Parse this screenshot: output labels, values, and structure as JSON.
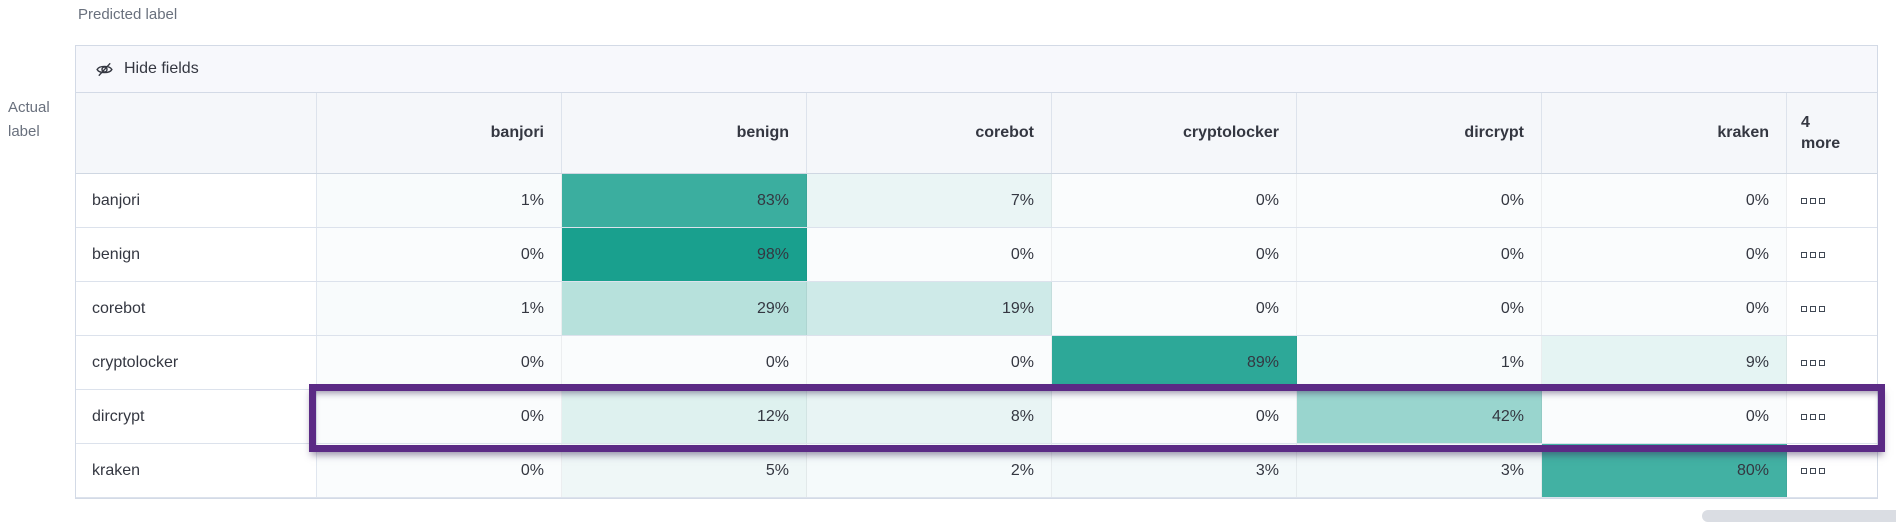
{
  "axes": {
    "predicted": "Predicted label",
    "actual": "Actual label"
  },
  "toolbar": {
    "hide_fields_label": "Hide fields",
    "icon": "eye-closed-icon"
  },
  "chart_data": {
    "type": "heatmap",
    "xlabel": "Predicted label",
    "ylabel": "Actual label",
    "columns": [
      "banjori",
      "benign",
      "corebot",
      "cryptolocker",
      "dircrypt",
      "kraken"
    ],
    "more_columns_label": "4 more",
    "rows": [
      "banjori",
      "benign",
      "corebot",
      "cryptolocker",
      "dircrypt",
      "kraken"
    ],
    "values_percent": [
      [
        1,
        83,
        7,
        0,
        0,
        0
      ],
      [
        0,
        98,
        0,
        0,
        0,
        0
      ],
      [
        1,
        29,
        19,
        0,
        0,
        0
      ],
      [
        0,
        0,
        0,
        89,
        1,
        9
      ],
      [
        0,
        12,
        8,
        0,
        42,
        0
      ],
      [
        0,
        5,
        2,
        3,
        3,
        80
      ]
    ],
    "value_suffix": "%",
    "highlighted_row": "dircrypt",
    "row_actions_icon": "boxes-horizontal-icon",
    "legend": "none",
    "grid": "on"
  },
  "colors": {
    "heat_zero": "#FAFCFD",
    "heat_full": "#149E8C",
    "highlight_purple": "#5B2A85",
    "header_bg": "#F5F7FA",
    "toolbar_bg": "#F7F8FC",
    "border": "#D3DAE6",
    "text_dark": "#343741",
    "text_gray": "#69707D",
    "scrollbar": "#DADDE3"
  }
}
